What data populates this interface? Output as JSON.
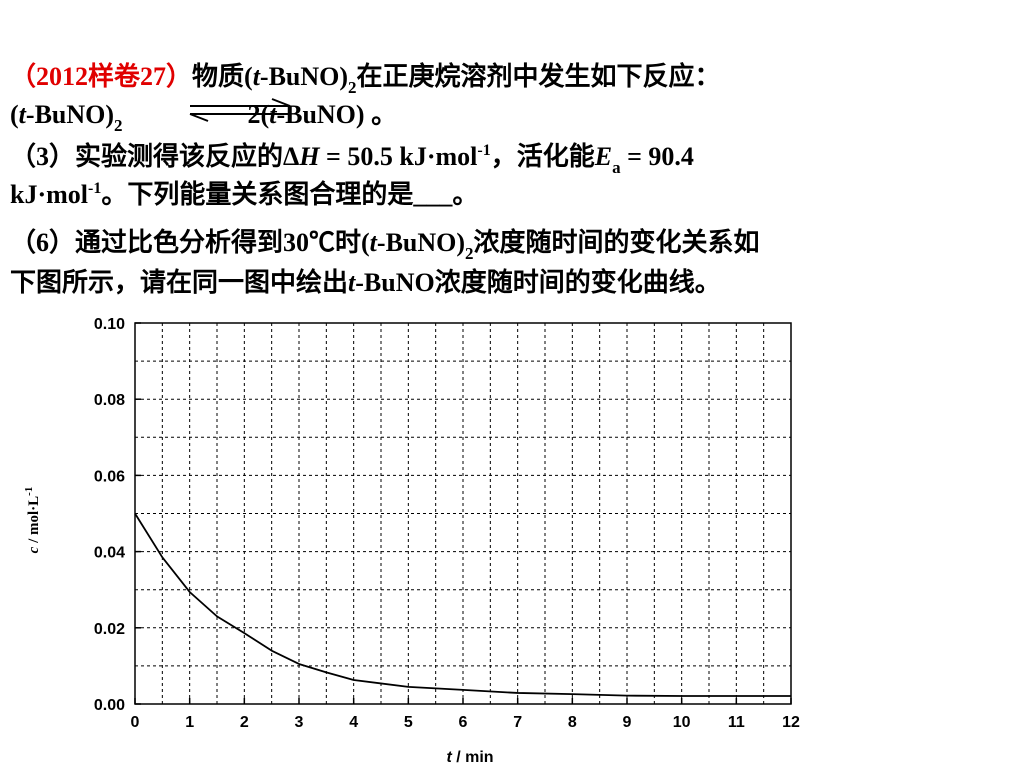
{
  "text": {
    "line1": [
      "（2012样卷27）",
      "物质(",
      "t",
      "-BuNO)",
      "2",
      "在正庚烷溶剂中发生如下反应："
    ],
    "line2": [
      "(",
      "t",
      "-BuNO)",
      "2",
      "2(",
      "t",
      "-BuNO)",
      " 。"
    ],
    "line3": [
      "（3）实验测得该反应的Δ",
      "H",
      " = 50.5 kJ·mol",
      "-1",
      "，活化能",
      "E",
      "a",
      " = 90.4"
    ],
    "line4": [
      "kJ·mol",
      "-1",
      "。下列能量关系图合理的是",
      "___",
      "。"
    ],
    "line5": [
      "（6）通过比色分析得到30℃时(",
      "t",
      "-BuNO)",
      "2",
      "浓度随时间的变化关系如"
    ],
    "line6": [
      "下图所示，请在同一图中绘出",
      "t",
      "-BuNO浓度随时间的变化曲线。"
    ]
  },
  "chart_data": {
    "type": "line",
    "x_label": [
      "t",
      " / min"
    ],
    "y_label": [
      "c",
      " / mol·L",
      "-1"
    ],
    "x": [
      0,
      0.5,
      1,
      1.5,
      2,
      2.5,
      3,
      3.5,
      4,
      5,
      6,
      7,
      8,
      9,
      10,
      11,
      12
    ],
    "values": [
      0.05,
      0.0385,
      0.0294,
      0.023,
      0.0186,
      0.014,
      0.0105,
      0.0083,
      0.0063,
      0.0045,
      0.0037,
      0.0029,
      0.0026,
      0.0022,
      0.0021,
      0.0021,
      0.0021
    ],
    "color": "#000000",
    "xlim": [
      0,
      12
    ],
    "ylim": [
      0,
      0.1
    ],
    "xticks": [
      0,
      1,
      2,
      3,
      4,
      5,
      6,
      7,
      8,
      9,
      10,
      11,
      12
    ],
    "yticks": [
      {
        "value": 0,
        "label": "0.00"
      },
      0.02,
      0.04,
      0.06,
      0.08,
      {
        "value": 0.1,
        "label": "0.10"
      }
    ],
    "grid_x": [
      0.5,
      1,
      1.5,
      2,
      2.5,
      3,
      3.5,
      4,
      4.5,
      5,
      5.5,
      6,
      6.5,
      7,
      7.5,
      8,
      8.5,
      9,
      9.5,
      10,
      10.5,
      11,
      11.5
    ],
    "grid_y": [
      0.01,
      0.02,
      0.03,
      0.04,
      0.05,
      0.06,
      0.07,
      0.08,
      0.09
    ]
  }
}
